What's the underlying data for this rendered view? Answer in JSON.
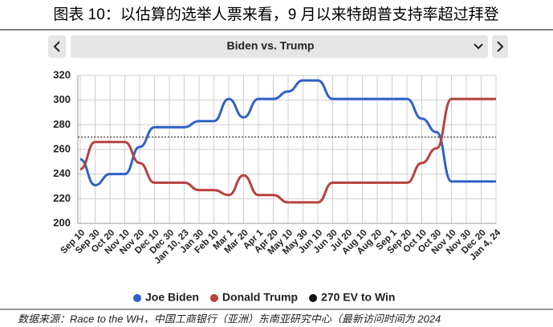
{
  "header": {
    "title": "图表 10：以估算的选举人票来看，9 月以来特朗普支持率超过拜登"
  },
  "selector": {
    "label": "Biden vs. Trump"
  },
  "chart_data": {
    "type": "line",
    "categories": [
      "Sep 10",
      "Sep 30",
      "Oct 20",
      "Nov 10",
      "Nov 20",
      "Dec 10",
      "Dec 30",
      "Jan 10, 23",
      "Jan 30",
      "Feb 10",
      "Mar 1",
      "Mar 20",
      "Apr 1",
      "Apr 20",
      "May 10",
      "May 30",
      "Jun 10",
      "Jun 30",
      "Jul 20",
      "Aug 10",
      "Aug 20",
      "Sep 1",
      "Sep 20",
      "Oct 10",
      "Oct 30",
      "Nov 10",
      "Nov 30",
      "Dec 20",
      "Jan 4, 24"
    ],
    "series": [
      {
        "name": "Joe Biden",
        "color": "#2f62c8",
        "values": [
          252,
          231,
          240,
          240,
          262,
          278,
          278,
          278,
          283,
          283,
          301,
          286,
          301,
          301,
          307,
          316,
          316,
          301,
          301,
          301,
          301,
          301,
          301,
          285,
          274,
          234,
          234,
          234,
          234
        ]
      },
      {
        "name": "Donald Trump",
        "color": "#b8423f",
        "values": [
          244,
          266,
          266,
          266,
          249,
          233,
          233,
          233,
          227,
          227,
          223,
          239,
          223,
          223,
          217,
          217,
          217,
          233,
          233,
          233,
          233,
          233,
          233,
          249,
          261,
          301,
          301,
          301,
          301
        ]
      }
    ],
    "reference_line": {
      "name": "270 EV to Win",
      "value": 270,
      "color": "#111111"
    },
    "ylim": [
      200,
      320
    ],
    "yticks": [
      200,
      220,
      240,
      260,
      280,
      300,
      320
    ],
    "grid": true
  },
  "footer": {
    "source": "数据来源：Race to the WH，中国工商银行（亚洲）东南亚研究中心（最新访问时间为 2024"
  }
}
